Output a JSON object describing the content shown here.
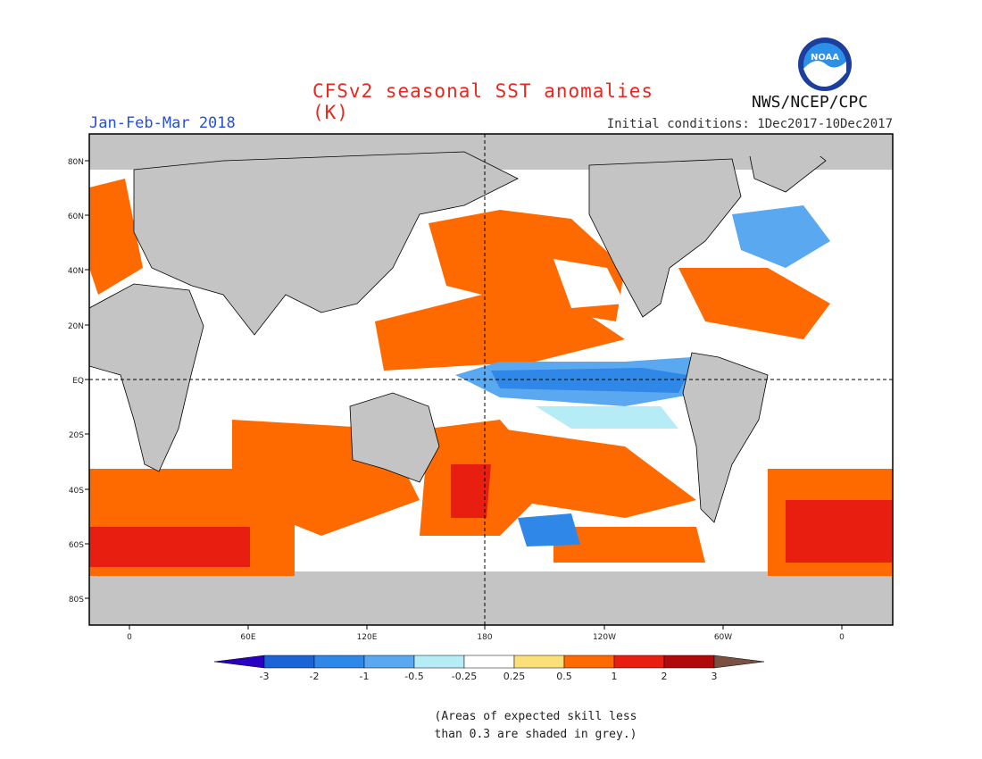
{
  "title": "CFSv2 seasonal SST anomalies (K)",
  "season": "Jan-Feb-Mar 2018",
  "initial_conditions": "Initial conditions: 1Dec2017-10Dec2017",
  "agency": "NWS/NCEP/CPC",
  "logo_text": "NOAA",
  "lat_labels": [
    "80N",
    "60N",
    "40N",
    "20N",
    "EQ",
    "20S",
    "40S",
    "60S",
    "80S"
  ],
  "lon_labels": [
    "0",
    "60E",
    "120E",
    "180",
    "120W",
    "60W",
    "0"
  ],
  "colorbar": {
    "labels": [
      "-3",
      "-2",
      "-1",
      "-0.5",
      "-0.25",
      "0.25",
      "0.5",
      "1",
      "2",
      "3"
    ],
    "colors": [
      "#2a00c0",
      "#1a64d6",
      "#2f87e8",
      "#5aa8f0",
      "#b6ecf6",
      "#ffffff",
      "#fbe07a",
      "#ff6a00",
      "#e81f10",
      "#b10a0a",
      "#7a5040"
    ]
  },
  "colors": {
    "land": "#c4c4c4",
    "ocean_neutral": "#ffffff",
    "title": "#e8281e",
    "season": "#2450e0"
  },
  "note_lines": [
    "(Areas of expected skill less",
    "than 0.3 are shaded in grey.)"
  ]
}
